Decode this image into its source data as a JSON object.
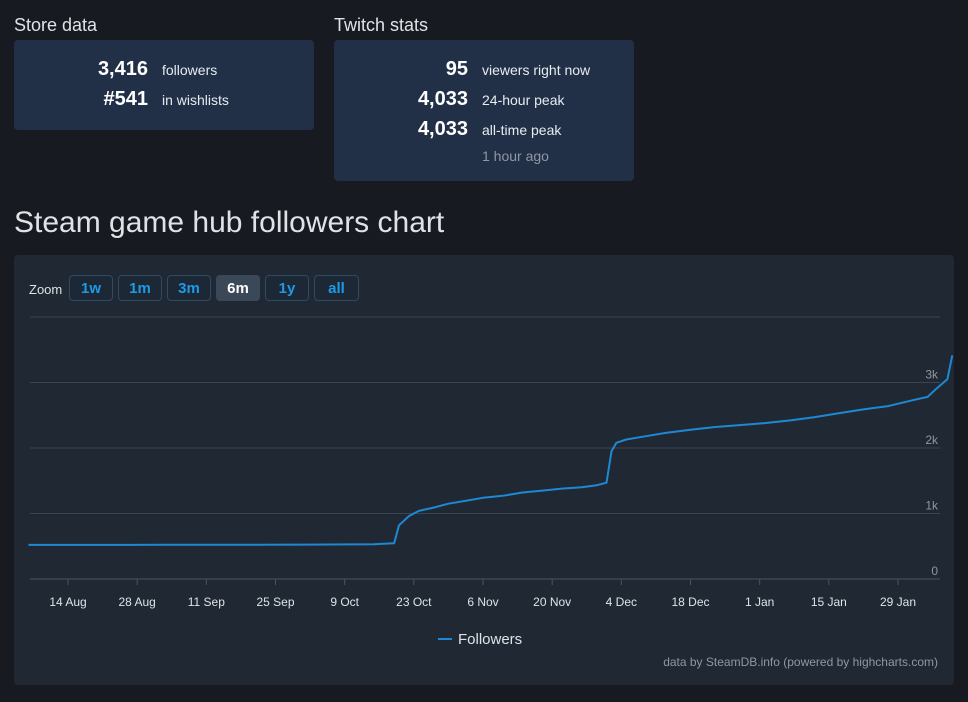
{
  "store": {
    "title": "Store data",
    "followers_value": "3,416",
    "followers_label": "followers",
    "wishlist_value": "#541",
    "wishlist_label": "in wishlists"
  },
  "twitch": {
    "title": "Twitch stats",
    "viewers_value": "95",
    "viewers_label": "viewers right now",
    "peak24_value": "4,033",
    "peak24_label": "24-hour peak",
    "alltime_value": "4,033",
    "alltime_label": "all-time peak",
    "alltime_when": "1 hour ago"
  },
  "chart_heading": "Steam game hub followers chart",
  "zoom": {
    "label": "Zoom",
    "buttons": [
      "1w",
      "1m",
      "3m",
      "6m",
      "1y",
      "all"
    ],
    "active": "6m"
  },
  "credits": "data by SteamDB.info (powered by highcharts.com)",
  "chart_data": {
    "type": "line",
    "series": [
      {
        "name": "Followers",
        "color": "#1e88d2",
        "points": [
          [
            "2024-08-06",
            520
          ],
          [
            "2024-08-20",
            520
          ],
          [
            "2024-09-03",
            522
          ],
          [
            "2024-09-17",
            522
          ],
          [
            "2024-10-01",
            525
          ],
          [
            "2024-10-15",
            532
          ],
          [
            "2024-10-19",
            545
          ],
          [
            "2024-10-20",
            820
          ],
          [
            "2024-10-22",
            960
          ],
          [
            "2024-10-24",
            1040
          ],
          [
            "2024-10-27",
            1090
          ],
          [
            "2024-10-30",
            1150
          ],
          [
            "2024-11-03",
            1200
          ],
          [
            "2024-11-06",
            1240
          ],
          [
            "2024-11-10",
            1270
          ],
          [
            "2024-11-14",
            1320
          ],
          [
            "2024-11-18",
            1350
          ],
          [
            "2024-11-22",
            1380
          ],
          [
            "2024-11-26",
            1400
          ],
          [
            "2024-11-29",
            1430
          ],
          [
            "2024-12-01",
            1470
          ],
          [
            "2024-12-02",
            1950
          ],
          [
            "2024-12-03",
            2080
          ],
          [
            "2024-12-05",
            2130
          ],
          [
            "2024-12-09",
            2180
          ],
          [
            "2024-12-13",
            2230
          ],
          [
            "2024-12-18",
            2280
          ],
          [
            "2024-12-23",
            2320
          ],
          [
            "2024-12-28",
            2350
          ],
          [
            "2025-01-02",
            2380
          ],
          [
            "2025-01-07",
            2420
          ],
          [
            "2025-01-12",
            2470
          ],
          [
            "2025-01-17",
            2530
          ],
          [
            "2025-01-22",
            2590
          ],
          [
            "2025-01-27",
            2640
          ],
          [
            "2025-02-01",
            2730
          ],
          [
            "2025-02-04",
            2780
          ],
          [
            "2025-02-06",
            2920
          ],
          [
            "2025-02-08",
            3050
          ],
          [
            "2025-02-09",
            3416
          ]
        ]
      }
    ],
    "x_ticks": [
      "14 Aug",
      "28 Aug",
      "11 Sep",
      "25 Sep",
      "9 Oct",
      "23 Oct",
      "6 Nov",
      "20 Nov",
      "4 Dec",
      "18 Dec",
      "1 Jan",
      "15 Jan",
      "29 Jan"
    ],
    "y_ticks": [
      "0",
      "1k",
      "2k",
      "3k"
    ],
    "ylim": [
      0,
      4000
    ],
    "grid": true,
    "legend_position": "bottom-center"
  }
}
